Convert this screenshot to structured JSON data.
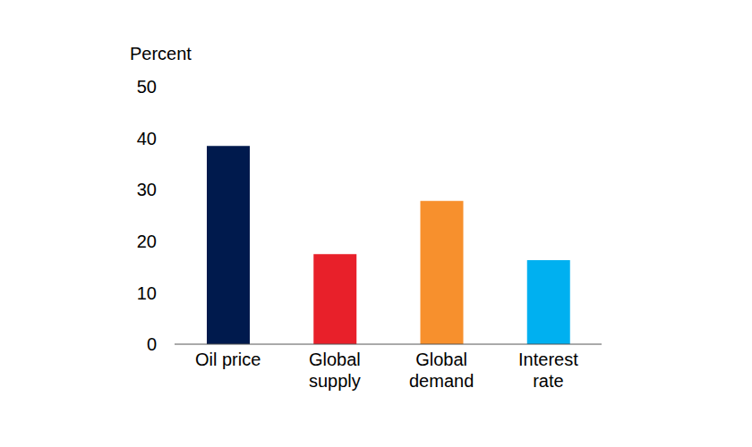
{
  "chart_data": {
    "type": "bar",
    "y_label": "Percent",
    "categories": [
      "Oil price",
      "Global supply",
      "Global demand",
      "Interest rate"
    ],
    "values": [
      38.5,
      17.5,
      27.8,
      16.3
    ],
    "colors": [
      "#001a4d",
      "#e8202a",
      "#f7902d",
      "#00b0f0"
    ],
    "ylim": [
      0,
      50
    ],
    "yticks": [
      0,
      10,
      20,
      30,
      40,
      50
    ],
    "grid": false
  }
}
